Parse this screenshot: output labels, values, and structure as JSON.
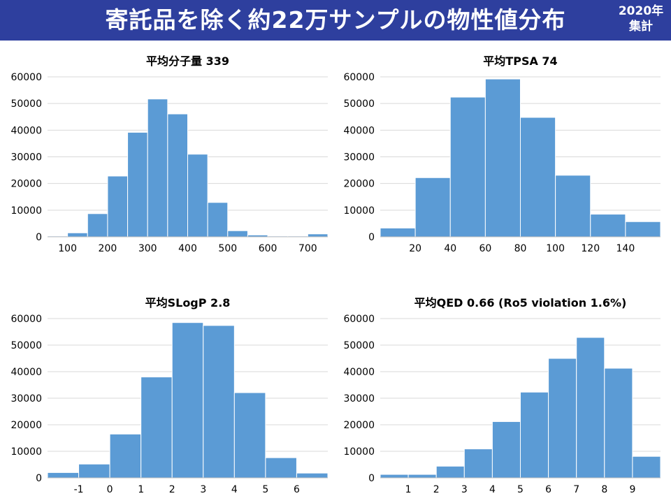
{
  "header": {
    "title": "寄託品を除く約22万サンプルの物性値分布",
    "year_line1": "2020年",
    "year_line2": "集計"
  },
  "colors": {
    "banner": "#2e3f9e",
    "bar": "#5b9bd5",
    "bar_edge": "#ffffff",
    "grid": "#d9d9d9"
  },
  "chart_data": [
    {
      "type": "bar",
      "title": "平均分子量 339",
      "xlabel": "",
      "ylabel": "",
      "ylim": [
        0,
        60000
      ],
      "yticks": [
        "0",
        "10000",
        "20000",
        "30000",
        "40000",
        "50000",
        "60000"
      ],
      "xlim": [
        50,
        750
      ],
      "xticks": [
        100,
        200,
        300,
        400,
        500,
        600,
        700
      ],
      "xtick_labels": [
        "100",
        "200",
        "300",
        "400",
        "500",
        "600",
        "700"
      ],
      "bins": [
        [
          50,
          100
        ],
        [
          100,
          150
        ],
        [
          150,
          200
        ],
        [
          200,
          250
        ],
        [
          250,
          300
        ],
        [
          300,
          350
        ],
        [
          350,
          400
        ],
        [
          400,
          450
        ],
        [
          450,
          500
        ],
        [
          500,
          550
        ],
        [
          550,
          600
        ],
        [
          600,
          650
        ],
        [
          650,
          700
        ],
        [
          700,
          750
        ]
      ],
      "values": [
        300,
        1500,
        8700,
        22800,
        39200,
        51700,
        46100,
        31000,
        12900,
        2300,
        700,
        300,
        300,
        1100
      ]
    },
    {
      "type": "bar",
      "title": "平均TPSA 74",
      "xlabel": "",
      "ylabel": "",
      "ylim": [
        0,
        60000
      ],
      "yticks": [
        "0",
        "10000",
        "20000",
        "30000",
        "40000",
        "50000",
        "60000"
      ],
      "xlim": [
        0,
        160
      ],
      "xticks": [
        20,
        40,
        60,
        80,
        100,
        120,
        140
      ],
      "xtick_labels": [
        "20",
        "40",
        "60",
        "80",
        "100",
        "120",
        "140"
      ],
      "bins": [
        [
          0,
          20
        ],
        [
          20,
          40
        ],
        [
          40,
          60
        ],
        [
          60,
          80
        ],
        [
          80,
          100
        ],
        [
          100,
          120
        ],
        [
          120,
          140
        ],
        [
          140,
          160
        ]
      ],
      "values": [
        3300,
        22200,
        52400,
        59200,
        44800,
        23100,
        8500,
        5700
      ]
    },
    {
      "type": "bar",
      "title": "平均SLogP 2.8",
      "xlabel": "",
      "ylabel": "",
      "ylim": [
        0,
        60000
      ],
      "yticks": [
        "0",
        "10000",
        "20000",
        "30000",
        "40000",
        "50000",
        "60000"
      ],
      "xlim": [
        -2,
        7
      ],
      "xticks": [
        -1,
        0,
        1,
        2,
        3,
        4,
        5,
        6
      ],
      "xtick_labels": [
        "-1",
        "0",
        "1",
        "2",
        "3",
        "4",
        "5",
        "6"
      ],
      "bins": [
        [
          -2,
          -1
        ],
        [
          -1,
          0
        ],
        [
          0,
          1
        ],
        [
          1,
          2
        ],
        [
          2,
          3
        ],
        [
          3,
          4
        ],
        [
          4,
          5
        ],
        [
          5,
          6
        ],
        [
          6,
          7
        ]
      ],
      "values": [
        2000,
        5200,
        16500,
        38000,
        58500,
        57400,
        32100,
        7600,
        1800
      ]
    },
    {
      "type": "bar",
      "title": "平均QED 0.66 (Ro5 violation 1.6%)",
      "xlabel": "",
      "ylabel": "",
      "ylim": [
        0,
        60000
      ],
      "yticks": [
        "0",
        "10000",
        "20000",
        "30000",
        "40000",
        "50000",
        "60000"
      ],
      "xlim": [
        0,
        10
      ],
      "xticks": [
        1,
        2,
        3,
        4,
        5,
        6,
        7,
        8,
        9
      ],
      "xtick_labels": [
        "1",
        "2",
        "3",
        "4",
        "5",
        "6",
        "7",
        "8",
        "9"
      ],
      "bins": [
        [
          0,
          1
        ],
        [
          1,
          2
        ],
        [
          2,
          3
        ],
        [
          3,
          4
        ],
        [
          4,
          5
        ],
        [
          5,
          6
        ],
        [
          6,
          7
        ],
        [
          7,
          8
        ],
        [
          8,
          9
        ],
        [
          9,
          10
        ]
      ],
      "values": [
        1300,
        1300,
        4400,
        10900,
        21200,
        32300,
        45000,
        52900,
        41300,
        8100
      ]
    }
  ]
}
